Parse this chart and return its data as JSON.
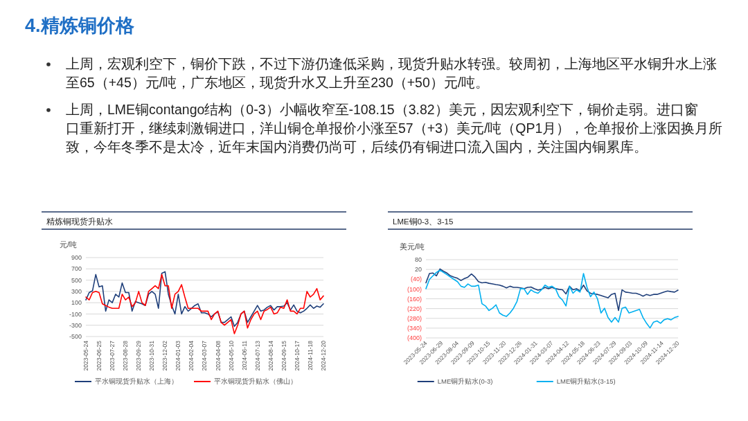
{
  "chart_data": [
    {
      "type": "other",
      "title": "4.精炼铜价格",
      "annotations": [
        "上周，宏观利空下，铜价下跌，不过下游仍逢低采购，现货升贴水转强。较周初，上海地区平水铜升水上涨至65（+45）元/吨，广东地区，现货升水又上升至230（+50）元/吨。",
        "上周，LME铜contango结构（0-3）小幅收窄至-108.15（3.82）美元，因宏观利空下，铜价走弱。进口窗口重新打开，继续刺激铜进口，洋山铜仓单报价小涨至57（+3）美元/吨（QP1月），仓单报价上涨因换月所致，今年冬季不是太冷，近年末国内消费仍尚可，后续仍有铜进口流入国内，关注国内铜累库。"
      ]
    },
    {
      "type": "line",
      "title": "精炼铜现货升贴水",
      "ylabel": "元/吨",
      "x": [
        "2023-05-24",
        "2023-06-01",
        "2023-06-09",
        "2023-06-17",
        "2023-06-25",
        "2023-07-03",
        "2023-07-11",
        "2023-07-19",
        "2023-07-27",
        "2023-08-04",
        "2023-08-12",
        "2023-08-20",
        "2023-08-28",
        "2023-09-05",
        "2023-09-13",
        "2023-09-21",
        "2023-09-29",
        "2023-10-07",
        "2023-10-15",
        "2023-10-23",
        "2023-10-31",
        "2023-11-08",
        "2023-11-16",
        "2023-11-24",
        "2023-12-02",
        "2023-12-10",
        "2023-12-18",
        "2023-12-26",
        "2024-01-03",
        "2024-01-11",
        "2024-01-19",
        "2024-01-27",
        "2024-02-04",
        "2024-02-12",
        "2024-02-20",
        "2024-02-28",
        "2024-03-07",
        "2024-03-15",
        "2024-03-23",
        "2024-03-31",
        "2024-04-08",
        "2024-04-16",
        "2024-04-24",
        "2024-05-02",
        "2024-05-10",
        "2024-05-18",
        "2024-05-26",
        "2024-06-03",
        "2024-06-11",
        "2024-06-19",
        "2024-06-27",
        "2024-07-05",
        "2024-07-13",
        "2024-07-21",
        "2024-07-29",
        "2024-08-06",
        "2024-08-14",
        "2024-08-22",
        "2024-08-30",
        "2024-09-07",
        "2024-09-15",
        "2024-09-23",
        "2024-10-01",
        "2024-10-09",
        "2024-10-17",
        "2024-10-25",
        "2024-11-02",
        "2024-11-10",
        "2024-11-18",
        "2024-11-26",
        "2024-12-04",
        "2024-12-12",
        "2024-12-20"
      ],
      "series": [
        {
          "name": "平水铜现货升贴水（上海）",
          "color": "#1f3f7a",
          "values": [
            150,
            280,
            310,
            600,
            380,
            400,
            -50,
            150,
            100,
            250,
            200,
            450,
            280,
            280,
            -50,
            120,
            100,
            80,
            50,
            250,
            300,
            250,
            0,
            620,
            650,
            250,
            50,
            -100,
            250,
            -100,
            30,
            -50,
            0,
            50,
            80,
            -80,
            -80,
            -100,
            -150,
            -100,
            -60,
            -250,
            -250,
            -200,
            -150,
            -320,
            -250,
            -100,
            -50,
            -250,
            -150,
            -50,
            50,
            -50,
            -30,
            20,
            50,
            -30,
            30,
            30,
            40,
            100,
            -30,
            60,
            -50,
            -80,
            -50,
            0,
            60,
            0,
            40,
            20,
            80
          ]
        },
        {
          "name": "平水铜现货升贴水（佛山）",
          "color": "#ff0000",
          "values": [
            200,
            150,
            280,
            300,
            280,
            80,
            50,
            20,
            0,
            0,
            0,
            250,
            150,
            200,
            30,
            100,
            300,
            100,
            50,
            300,
            350,
            400,
            350,
            600,
            400,
            400,
            0,
            250,
            300,
            420,
            200,
            0,
            0,
            0,
            0,
            -50,
            -50,
            -50,
            -200,
            -100,
            -50,
            -250,
            -300,
            -250,
            -200,
            -450,
            -300,
            -100,
            -50,
            -350,
            -200,
            -100,
            -50,
            -200,
            -50,
            -20,
            20,
            -100,
            -80,
            20,
            0,
            150,
            -50,
            -50,
            -100,
            0,
            0,
            300,
            200,
            250,
            350,
            150,
            220
          ]
        }
      ],
      "xlim": [
        "2023-05-24",
        "2024-12-20"
      ],
      "xticks": [
        "2023-05-24",
        "2023-06-25",
        "2023-07-27",
        "2023-08-28",
        "2023-09-29",
        "2023-10-31",
        "2023-12-02",
        "2024-01-03",
        "2024-02-04",
        "2024-03-07",
        "2024-04-08",
        "2024-05-10",
        "2024-06-11",
        "2024-07-13",
        "2024-08-14",
        "2024-09-15",
        "2024-10-17",
        "2024-11-18",
        "2024-12-20"
      ],
      "ylim": [
        -500,
        900
      ],
      "yticks": [
        -500,
        -300,
        -100,
        100,
        300,
        500,
        700,
        900
      ],
      "grid": "y",
      "legend": "bottom",
      "marker": "none",
      "line_style": "solid"
    },
    {
      "type": "line",
      "title": "LME铜0-3、3-15",
      "ylabel": "美元/吨",
      "x": [
        "2023-05-24",
        "2023-06-01",
        "2023-06-09",
        "2023-06-17",
        "2023-06-25",
        "2023-07-03",
        "2023-07-11",
        "2023-07-19",
        "2023-07-27",
        "2023-08-04",
        "2023-08-12",
        "2023-08-20",
        "2023-08-28",
        "2023-09-05",
        "2023-09-13",
        "2023-09-21",
        "2023-09-29",
        "2023-10-07",
        "2023-10-15",
        "2023-10-23",
        "2023-10-31",
        "2023-11-08",
        "2023-11-16",
        "2023-11-24",
        "2023-12-02",
        "2023-12-10",
        "2023-12-18",
        "2023-12-26",
        "2024-01-03",
        "2024-01-11",
        "2024-01-19",
        "2024-01-27",
        "2024-02-04",
        "2024-02-12",
        "2024-02-20",
        "2024-02-28",
        "2024-03-07",
        "2024-03-15",
        "2024-03-23",
        "2024-03-31",
        "2024-04-08",
        "2024-04-16",
        "2024-04-24",
        "2024-05-02",
        "2024-05-10",
        "2024-05-18",
        "2024-05-26",
        "2024-06-03",
        "2024-06-11",
        "2024-06-19",
        "2024-06-27",
        "2024-07-05",
        "2024-07-13",
        "2024-07-21",
        "2024-07-29",
        "2024-08-06",
        "2024-08-14",
        "2024-08-22",
        "2024-08-30",
        "2024-09-07",
        "2024-09-15",
        "2024-09-23",
        "2024-10-01",
        "2024-10-09",
        "2024-10-17",
        "2024-10-25",
        "2024-11-02",
        "2024-11-10",
        "2024-11-18",
        "2024-11-26",
        "2024-12-04",
        "2024-12-12",
        "2024-12-20"
      ],
      "series": [
        {
          "name": "LME铜升贴水(0-3)",
          "color": "#1f3f7a",
          "values": [
            -62,
            -5,
            -2,
            -19,
            23,
            9,
            -2,
            -19,
            -27,
            -34,
            -48,
            -36,
            -27,
            -8,
            -27,
            -55,
            -62,
            -59,
            -65,
            -69,
            -73,
            -76,
            -83,
            -93,
            -83,
            -90,
            -90,
            -93,
            -98,
            -90,
            -88,
            -98,
            -107,
            -102,
            -90,
            -98,
            -90,
            -98,
            -102,
            -105,
            -130,
            -83,
            -105,
            -98,
            -112,
            -76,
            -112,
            -126,
            -130,
            -133,
            -140,
            -147,
            -154,
            -133,
            -126,
            -232,
            -105,
            -119,
            -122,
            -126,
            -126,
            -133,
            -144,
            -133,
            -140,
            -133,
            -133,
            -126,
            -119,
            -112,
            -116,
            -119,
            -107
          ]
        },
        {
          "name": "LME铜升贴水(3-15)",
          "color": "#00b0f0",
          "values": [
            -98,
            -41,
            -19,
            2,
            16,
            2,
            -12,
            -27,
            -41,
            -55,
            -83,
            -90,
            -69,
            -83,
            -83,
            -76,
            -190,
            -204,
            -232,
            -218,
            -197,
            -247,
            -261,
            -268,
            -247,
            -218,
            -176,
            -98,
            -98,
            -133,
            -105,
            -119,
            -126,
            -105,
            -76,
            -90,
            -83,
            -98,
            -147,
            -168,
            -204,
            -83,
            -126,
            -105,
            -119,
            -5,
            -90,
            -147,
            -119,
            -161,
            -247,
            -218,
            -275,
            -303,
            -275,
            -303,
            -218,
            -211,
            -247,
            -240,
            -232,
            -225,
            -275,
            -310,
            -339,
            -303,
            -296,
            -310,
            -289,
            -282,
            -289,
            -275,
            -268
          ]
        }
      ],
      "xlim": [
        "2023-05-24",
        "2024-12-20"
      ],
      "xticks": [
        "2023-05-24",
        "2023-06-29",
        "2023-08-04",
        "2023-09-09",
        "2023-10-15",
        "2023-11-20",
        "2023-12-26",
        "2024-01-31",
        "2024-03-07",
        "2024-04-12",
        "2024-05-18",
        "2024-06-23",
        "2024-07-29",
        "2024-09-03",
        "2024-10-09",
        "2024-11-14",
        "2024-12-20"
      ],
      "ylim": [
        -400,
        80
      ],
      "yticks": [
        {
          "value": -400,
          "label": "(400)"
        },
        {
          "value": -340,
          "label": "(340)"
        },
        {
          "value": -280,
          "label": "(280)"
        },
        {
          "value": -220,
          "label": "(220)"
        },
        {
          "value": -160,
          "label": "(160)"
        },
        {
          "value": -100,
          "label": "(100)"
        },
        {
          "value": -40,
          "label": "(40)"
        },
        20,
        80
      ],
      "grid": "y",
      "legend": "bottom",
      "marker": "none",
      "line_style": "solid"
    }
  ]
}
